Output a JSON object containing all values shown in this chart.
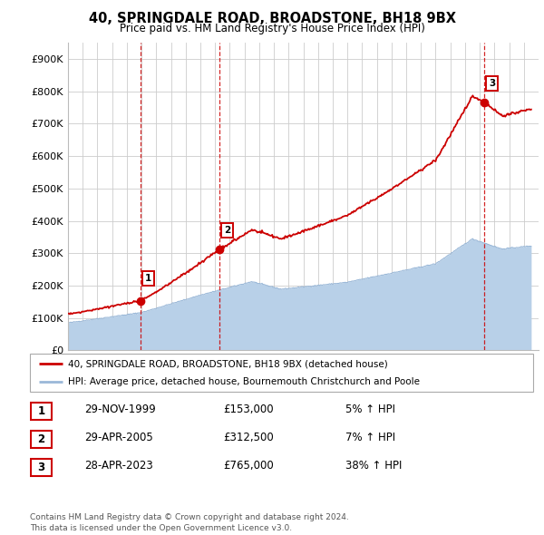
{
  "title": "40, SPRINGDALE ROAD, BROADSTONE, BH18 9BX",
  "subtitle": "Price paid vs. HM Land Registry's House Price Index (HPI)",
  "ylim": [
    0,
    950000
  ],
  "yticks": [
    0,
    100000,
    200000,
    300000,
    400000,
    500000,
    600000,
    700000,
    800000,
    900000
  ],
  "ytick_labels": [
    "£0",
    "£100K",
    "£200K",
    "£300K",
    "£400K",
    "£500K",
    "£600K",
    "£700K",
    "£800K",
    "£900K"
  ],
  "xlim_start": 1995.0,
  "xlim_end": 2027.0,
  "sale_dates": [
    1999.91,
    2005.32,
    2023.32
  ],
  "sale_prices": [
    153000,
    312500,
    765000
  ],
  "sale_labels": [
    "1",
    "2",
    "3"
  ],
  "hpi_color": "#b8d0e8",
  "hpi_line_color": "#9ab8d8",
  "price_color": "#cc0000",
  "grid_color": "#cccccc",
  "legend_line1": "40, SPRINGDALE ROAD, BROADSTONE, BH18 9BX (detached house)",
  "legend_line2": "HPI: Average price, detached house, Bournemouth Christchurch and Poole",
  "table_rows": [
    {
      "num": "1",
      "date": "29-NOV-1999",
      "price": "£153,000",
      "pct": "5% ↑ HPI"
    },
    {
      "num": "2",
      "date": "29-APR-2005",
      "price": "£312,500",
      "pct": "7% ↑ HPI"
    },
    {
      "num": "3",
      "date": "28-APR-2023",
      "price": "£765,000",
      "pct": "38% ↑ HPI"
    }
  ],
  "footer": "Contains HM Land Registry data © Crown copyright and database right 2024.\nThis data is licensed under the Open Government Licence v3.0.",
  "dashed_line_color": "#cc0000",
  "dashed_line_dates": [
    1999.91,
    2005.32,
    2023.32
  ]
}
